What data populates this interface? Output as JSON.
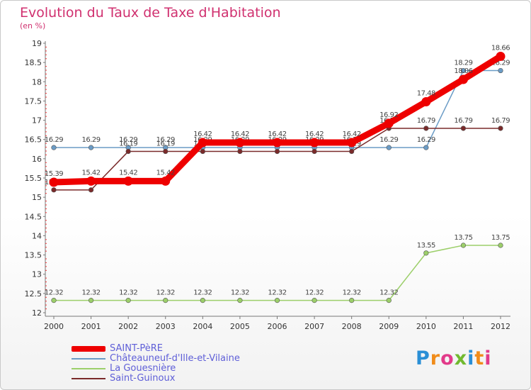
{
  "chart_data": {
    "type": "line",
    "title": "Evolution du Taux de Taxe d'Habitation",
    "ylabel": "(en %)",
    "xlabel": "",
    "x": [
      "2000",
      "2001",
      "2002",
      "2003",
      "2004",
      "2005",
      "2006",
      "2007",
      "2008",
      "2009",
      "2010",
      "2011",
      "2012"
    ],
    "ylim": [
      12,
      19
    ],
    "yticks": [
      "12",
      "12.5",
      "13",
      "13.5",
      "14",
      "14.5",
      "15",
      "15.5",
      "16",
      "16.5",
      "17",
      "17.5",
      "18",
      "18.5",
      "19"
    ],
    "grid": false,
    "legend_position": "bottom-left",
    "series": [
      {
        "name": "SAINT-PèRE",
        "color": "#ee0000",
        "values": [
          15.39,
          15.42,
          15.42,
          15.42,
          16.42,
          16.42,
          16.42,
          16.42,
          16.42,
          16.92,
          17.48,
          18.06,
          18.66
        ],
        "labels": [
          "15.39",
          "15.42",
          "15.42",
          "15.42",
          "16.42",
          "16.42",
          "16.42",
          "16.42",
          "16.42",
          "16.92",
          "17.48",
          "18.06",
          "18.66"
        ]
      },
      {
        "name": "Châteauneuf-d'Ille-et-Vilaine",
        "color": "#6b9cc6",
        "values": [
          16.29,
          16.29,
          16.29,
          16.29,
          16.29,
          16.29,
          16.29,
          16.29,
          16.29,
          16.29,
          16.29,
          18.29,
          18.29
        ],
        "labels": [
          "16.29",
          "16.29",
          "16.29",
          "16.29",
          "16.29",
          "16.29",
          "16.29",
          "16.29",
          "16.29",
          "16.29",
          "16.29",
          "18.29",
          "18.29"
        ]
      },
      {
        "name": "La Gouesnière",
        "color": "#9ccf6a",
        "values": [
          12.32,
          12.32,
          12.32,
          12.32,
          12.32,
          12.32,
          12.32,
          12.32,
          12.32,
          12.32,
          13.55,
          13.75,
          13.75
        ],
        "labels": [
          "12.32",
          "12.32",
          "12.32",
          "12.32",
          "12.32",
          "12.32",
          "12.32",
          "12.32",
          "12.32",
          "12.32",
          "13.55",
          "13.75",
          "13.75"
        ]
      },
      {
        "name": "Saint-Guinoux",
        "color": "#7a2a2a",
        "values": [
          15.19,
          15.19,
          16.19,
          16.19,
          16.19,
          16.19,
          16.19,
          16.19,
          16.19,
          16.79,
          16.79,
          16.79,
          16.79
        ],
        "labels": [
          "15.19",
          "15.19",
          "16.19",
          "16.19",
          "16.19",
          "16.19",
          "16.19",
          "16.19",
          "16.19",
          "16.79",
          "16.79",
          "16.79",
          "16.79"
        ]
      }
    ]
  },
  "legend": {
    "items": [
      {
        "label": "SAINT-PèRE",
        "color": "#ee0000"
      },
      {
        "label": "Châteauneuf-d'Ille-et-Vilaine",
        "color": "#6b9cc6"
      },
      {
        "label": "La Gouesnière",
        "color": "#9ccf6a"
      },
      {
        "label": "Saint-Guinoux",
        "color": "#7a2a2a"
      }
    ]
  },
  "logo": {
    "letters": [
      "P",
      "r",
      "o",
      "x",
      "i",
      "t",
      "i"
    ]
  }
}
